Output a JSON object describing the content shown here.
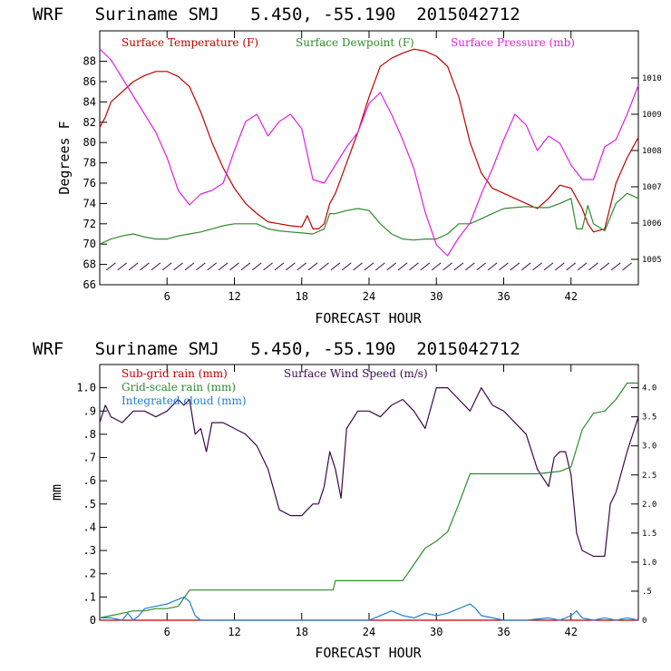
{
  "chart_data": [
    {
      "type": "line",
      "title": "WRF   Suriname SMJ   5.450, -55.190  2015042712",
      "xlabel": "FORECAST HOUR",
      "ylabel": "Degrees F",
      "xlim": [
        0,
        48
      ],
      "ylim": [
        66,
        91
      ],
      "y2lim": [
        1004.3,
        1011.3
      ],
      "xticks": [
        6,
        12,
        18,
        24,
        30,
        36,
        42
      ],
      "yticks": [
        66,
        68,
        70,
        72,
        74,
        76,
        78,
        80,
        82,
        84,
        86,
        88
      ],
      "y2ticks": [
        1005,
        1006,
        1007,
        1008,
        1009,
        1010
      ],
      "legend": [
        "Surface Temperature (F)",
        "Surface Dewpoint (F)",
        "Surface Pressure (mb)"
      ],
      "colors": [
        "#c00000",
        "#2e8b2e",
        "#e020e0"
      ],
      "wind_barb_row_y": 67.8,
      "series": [
        {
          "name": "Surface Temperature (F)",
          "axis": "left",
          "x": [
            0,
            0.5,
            1,
            2,
            3,
            4,
            5,
            6,
            7,
            8,
            9,
            10,
            11,
            12,
            13,
            14,
            15,
            16,
            17,
            18,
            18.5,
            19,
            19.5,
            20,
            20.5,
            21,
            21.5,
            22,
            23,
            24,
            25,
            26,
            27,
            28,
            29,
            30,
            31,
            32,
            33,
            34,
            35,
            36,
            37,
            38,
            39,
            40,
            41,
            42,
            43,
            43.5,
            44,
            45,
            46,
            47,
            48
          ],
          "values": [
            81.5,
            82.5,
            84,
            85,
            86,
            86.6,
            87,
            87,
            86.5,
            85.5,
            83,
            80,
            77.5,
            75.5,
            74,
            73,
            72.2,
            72,
            71.8,
            71.7,
            72.8,
            71.5,
            71.5,
            72,
            74,
            75,
            76.5,
            78,
            81,
            84.5,
            87.5,
            88.3,
            88.8,
            89.2,
            89,
            88.5,
            87.5,
            84.5,
            80,
            77,
            75.5,
            75,
            74.5,
            74,
            73.5,
            74.5,
            75.8,
            75.5,
            73.5,
            72,
            71.2,
            71.5,
            76,
            78.5,
            80.5
          ]
        },
        {
          "name": "Surface Dewpoint (F)",
          "axis": "left",
          "x": [
            0,
            1,
            2,
            3,
            4,
            5,
            6,
            7,
            8,
            9,
            10,
            11,
            12,
            13,
            14,
            15,
            16,
            17,
            18,
            19,
            20,
            20.5,
            21,
            22,
            23,
            24,
            25,
            26,
            27,
            28,
            29,
            30,
            31,
            32,
            33,
            34,
            35,
            36,
            37,
            38,
            39,
            40,
            41,
            42,
            42.5,
            43,
            43.5,
            44,
            45,
            46,
            47,
            48
          ],
          "values": [
            70,
            70.5,
            70.8,
            71,
            70.7,
            70.5,
            70.5,
            70.8,
            71,
            71.2,
            71.5,
            71.8,
            72,
            72,
            72,
            71.5,
            71.3,
            71.2,
            71.1,
            71,
            71.5,
            73,
            73,
            73.3,
            73.5,
            73.3,
            72,
            71,
            70.5,
            70.4,
            70.5,
            70.5,
            71,
            72,
            72,
            72.5,
            73,
            73.5,
            73.6,
            73.7,
            73.6,
            73.6,
            74,
            74.5,
            71.5,
            71.5,
            73.8,
            72,
            71.3,
            74,
            75,
            74.5
          ]
        },
        {
          "name": "Surface Pressure (mb)",
          "axis": "right",
          "x": [
            0,
            1,
            2,
            3,
            4,
            5,
            6,
            7,
            8,
            9,
            10,
            11,
            12,
            13,
            14,
            15,
            16,
            17,
            18,
            19,
            20,
            21,
            22,
            23,
            24,
            25,
            26,
            27,
            28,
            29,
            30,
            31,
            32,
            33,
            34,
            35,
            36,
            37,
            38,
            39,
            40,
            41,
            42,
            43,
            44,
            45,
            46,
            47,
            48
          ],
          "values": [
            1010.8,
            1010.5,
            1010,
            1009.5,
            1009,
            1008.5,
            1007.8,
            1006.9,
            1006.5,
            1006.8,
            1006.9,
            1007.1,
            1008,
            1008.8,
            1009,
            1008.4,
            1008.8,
            1009,
            1008.6,
            1007.2,
            1007.1,
            1007.6,
            1008.1,
            1008.5,
            1009.3,
            1009.6,
            1009,
            1008.3,
            1007.5,
            1006.3,
            1005.4,
            1005.1,
            1005.6,
            1006,
            1006.8,
            1007.5,
            1008.3,
            1009,
            1008.7,
            1008,
            1008.4,
            1008.2,
            1007.6,
            1007.2,
            1007.2,
            1008.1,
            1008.3,
            1009,
            1009.8
          ]
        }
      ]
    },
    {
      "type": "line",
      "title": "WRF   Suriname SMJ   5.450, -55.190  2015042712",
      "xlabel": "FORECAST HOUR",
      "ylabel": "mm",
      "xlim": [
        0,
        48
      ],
      "ylim": [
        0,
        1.1
      ],
      "y2lim": [
        0,
        4.4
      ],
      "xticks": [
        6,
        12,
        18,
        24,
        30,
        36,
        42
      ],
      "yticks": [
        0,
        0.1,
        0.2,
        0.3,
        0.4,
        0.5,
        0.6,
        0.7,
        0.8,
        0.9,
        1.0
      ],
      "ytick_labels": [
        "0",
        ".1",
        ".2",
        ".3",
        ".4",
        ".5",
        ".6",
        ".7",
        ".8",
        ".9",
        "1.0"
      ],
      "y2ticks": [
        0,
        0.5,
        1.0,
        1.5,
        2.0,
        2.5,
        3.0,
        3.5,
        4.0
      ],
      "y2tick_labels": [
        "0",
        ".5",
        "1.0",
        "1.5",
        "2.0",
        "2.5",
        "3.0",
        "3.5",
        "4.0"
      ],
      "legend": [
        "Sub-grid rain (mm)",
        "Surface Wind Speed (m/s)",
        "Grid-scale rain (mm)",
        "Integrated cloud (mm)"
      ],
      "colors": [
        "#c00000",
        "#3a0a4a",
        "#2e8b2e",
        "#1e7fd0"
      ],
      "series": [
        {
          "name": "Sub-grid rain (mm)",
          "axis": "left",
          "x": [
            0,
            48
          ],
          "values": [
            0,
            0
          ]
        },
        {
          "name": "Surface Wind Speed (m/s)",
          "axis": "right",
          "x": [
            0,
            0.5,
            1,
            2,
            3,
            4,
            5,
            6,
            7,
            7.5,
            8,
            8.5,
            9,
            9.5,
            10,
            11,
            12,
            13,
            14,
            15,
            16,
            17,
            18,
            18.5,
            19,
            19.5,
            20,
            20.5,
            21,
            21.5,
            22,
            23,
            24,
            25,
            26,
            27,
            28,
            29,
            30,
            31,
            32,
            33,
            34,
            35,
            36,
            37,
            38,
            39,
            40,
            40.5,
            41,
            41.5,
            42,
            42.5,
            43,
            44,
            45,
            45.5,
            46,
            47,
            48
          ],
          "values": [
            3.4,
            3.7,
            3.5,
            3.4,
            3.6,
            3.6,
            3.5,
            3.6,
            3.8,
            3.7,
            3.8,
            3.2,
            3.3,
            2.9,
            3.4,
            3.4,
            3.3,
            3.2,
            3.0,
            2.6,
            1.9,
            1.8,
            1.8,
            1.9,
            2.0,
            2.0,
            2.3,
            2.9,
            2.6,
            2.1,
            3.3,
            3.6,
            3.6,
            3.5,
            3.7,
            3.8,
            3.6,
            3.3,
            4.0,
            4.0,
            3.8,
            3.6,
            4.0,
            3.7,
            3.6,
            3.4,
            3.2,
            2.6,
            2.3,
            2.8,
            2.9,
            2.9,
            2.5,
            1.5,
            1.2,
            1.1,
            1.1,
            2.0,
            2.2,
            2.9,
            3.5
          ]
        },
        {
          "name": "Grid-scale rain (mm)",
          "axis": "left",
          "x": [
            0,
            1,
            2,
            3,
            4,
            5,
            6,
            7,
            8,
            9,
            10,
            12,
            14,
            16,
            18,
            20,
            20.8,
            21,
            24,
            26,
            27,
            28,
            29,
            30,
            31,
            32,
            33,
            36,
            39,
            41,
            42,
            43,
            44,
            45,
            46,
            47,
            48
          ],
          "values": [
            0.01,
            0.02,
            0.03,
            0.04,
            0.04,
            0.05,
            0.05,
            0.06,
            0.13,
            0.13,
            0.13,
            0.13,
            0.13,
            0.13,
            0.13,
            0.13,
            0.13,
            0.17,
            0.17,
            0.17,
            0.17,
            0.24,
            0.31,
            0.34,
            0.38,
            0.5,
            0.63,
            0.63,
            0.63,
            0.64,
            0.66,
            0.82,
            0.89,
            0.9,
            0.95,
            1.02,
            1.02
          ]
        },
        {
          "name": "Integrated cloud (mm)",
          "axis": "left",
          "x": [
            0,
            1,
            2,
            2.5,
            3,
            3.5,
            4,
            5,
            6,
            7,
            7.5,
            8,
            8.5,
            9,
            12,
            18,
            21,
            24,
            25,
            26,
            27,
            28,
            29,
            30,
            31,
            32,
            33,
            33.5,
            34,
            35,
            36,
            37,
            38,
            40,
            41,
            42,
            42.5,
            43,
            44,
            45,
            46,
            47,
            48
          ],
          "values": [
            0.01,
            0.01,
            0.0,
            0.03,
            0.0,
            0.02,
            0.05,
            0.06,
            0.07,
            0.09,
            0.1,
            0.08,
            0.02,
            0.0,
            0.0,
            0.0,
            0.0,
            0.0,
            0.02,
            0.04,
            0.02,
            0.01,
            0.03,
            0.02,
            0.03,
            0.05,
            0.07,
            0.05,
            0.02,
            0.01,
            0.0,
            0.0,
            0.0,
            0.01,
            0.0,
            0.02,
            0.04,
            0.01,
            0.0,
            0.01,
            0.0,
            0.01,
            0.0
          ]
        }
      ]
    }
  ]
}
